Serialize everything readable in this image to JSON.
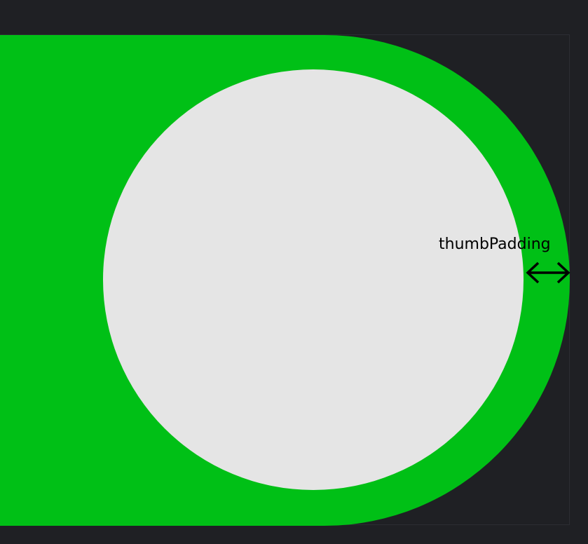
{
  "annotation": {
    "label": "thumbPadding",
    "arrow_icon": "double-headed-arrow-icon"
  },
  "colors": {
    "background": "#1f2024",
    "track": "#00c016",
    "thumb": "#e5e5e5",
    "annotation": "#000000"
  }
}
